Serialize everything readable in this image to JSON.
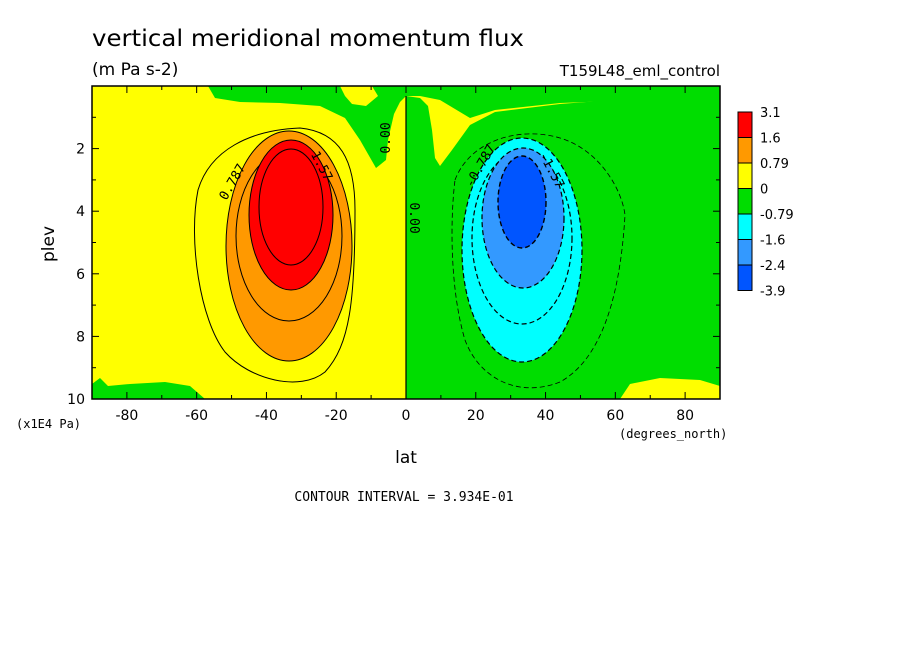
{
  "chart_data": {
    "type": "heatmap",
    "title": "vertical meridional momentum flux",
    "units": "(m Pa s-2)",
    "run_label": "T159L48_eml_control",
    "xlabel": "lat",
    "x_units": "(degrees_north)",
    "ylabel": "plev",
    "y_units": "(x1E4 Pa)",
    "xlim": [
      -90,
      90
    ],
    "ylim": [
      10,
      0
    ],
    "x_ticks": [
      -80,
      -60,
      -40,
      -20,
      0,
      20,
      40,
      60,
      80
    ],
    "y_ticks": [
      2,
      4,
      6,
      8,
      10
    ],
    "contour_interval": "CONTOUR INTERVAL = 3.934E-01",
    "contour_labels": [
      "0.787",
      "1.57",
      "0.00",
      "0.00",
      "-0.787",
      "-1.57"
    ],
    "colorbar": {
      "labels": [
        "3.1",
        "1.6",
        "0.79",
        "0",
        "-0.79",
        "-1.6",
        "-2.4",
        "-3.9"
      ],
      "colors": [
        "#ff0000",
        "#ff9900",
        "#ffff00",
        "#00dd00",
        "#00ffff",
        "#3399ff",
        "#0055ff"
      ]
    },
    "features": [
      {
        "name": "positive maximum",
        "lat": -33,
        "plev": 4.0,
        "value": 3.1
      },
      {
        "name": "negative minimum",
        "lat": 33,
        "plev": 4.0,
        "value": -3.9
      }
    ]
  }
}
